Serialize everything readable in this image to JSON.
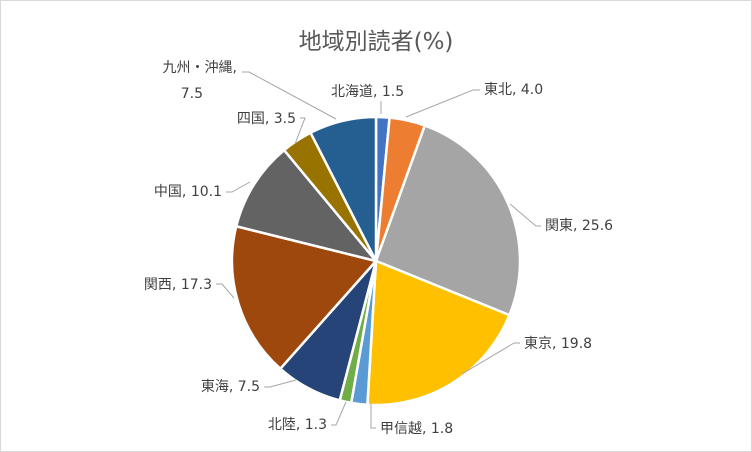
{
  "chart_data": {
    "type": "pie",
    "title": "地域別読者(%)",
    "categories": [
      "北海道",
      "東北",
      "関東",
      "東京",
      "甲信越",
      "北陸",
      "東海",
      "関西",
      "中国",
      "四国",
      "九州・沖縄"
    ],
    "values": [
      1.5,
      4.0,
      25.6,
      19.8,
      1.8,
      1.3,
      7.5,
      17.3,
      10.1,
      3.5,
      7.5
    ],
    "value_labels": [
      "1.5",
      "4.0",
      "25.6",
      "19.8",
      "1.8",
      "1.3",
      "7.5",
      "17.3",
      "10.1",
      "3.5",
      "7.5"
    ],
    "colors": [
      "#4472C4",
      "#ED7D31",
      "#A5A5A5",
      "#FFC000",
      "#5B9BD5",
      "#70AD47",
      "#264478",
      "#9E480E",
      "#636363",
      "#997300",
      "#255E91"
    ],
    "start_angle": "12 o'clock",
    "direction": "clockwise",
    "legend": "none",
    "data_labels": "category, value with leader lines"
  }
}
